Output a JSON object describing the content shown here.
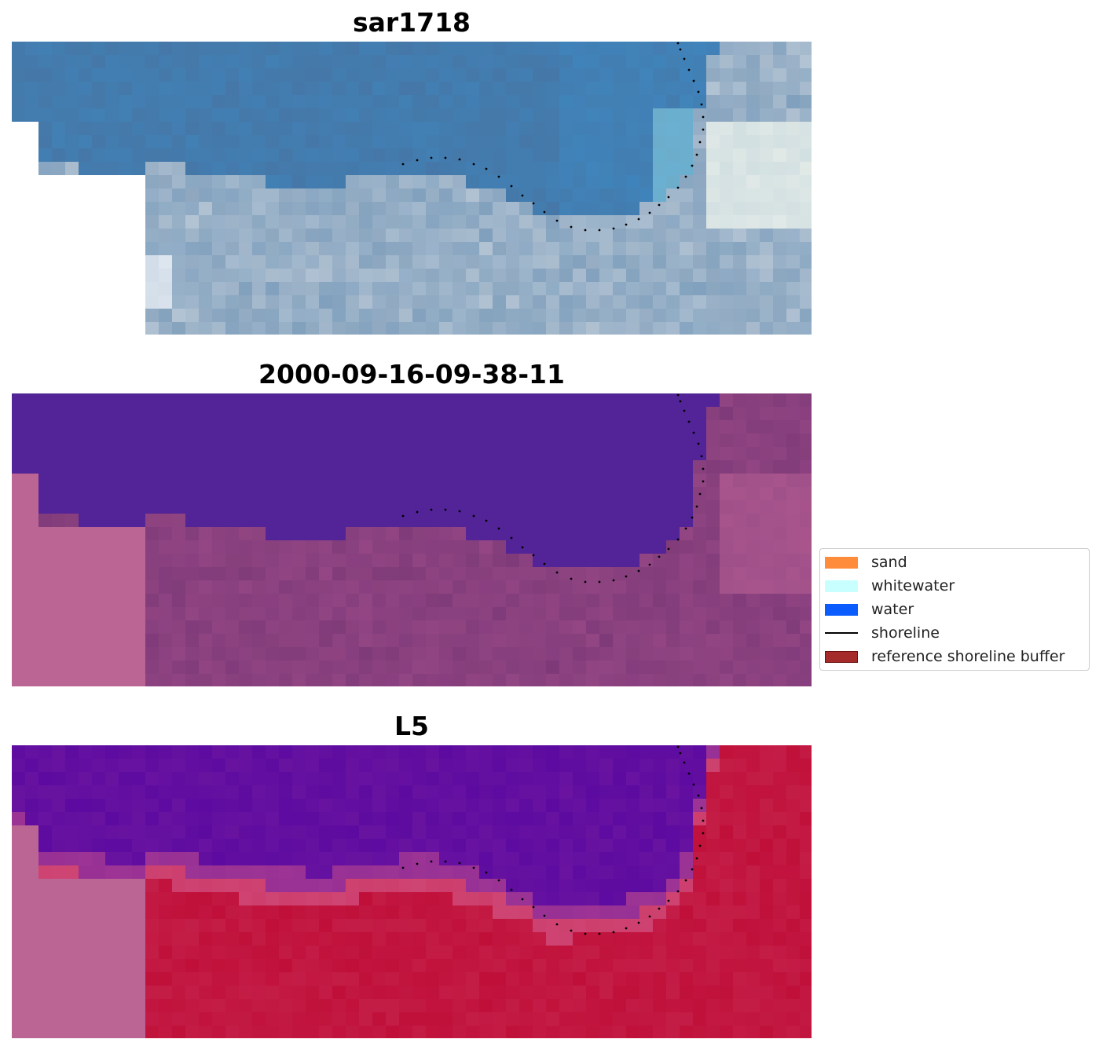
{
  "panels": [
    {
      "id": "rgb",
      "title": "sar1718"
    },
    {
      "id": "classified",
      "title": "2000-09-16-09-38-11"
    },
    {
      "id": "mndwi",
      "title": "L5"
    }
  ],
  "legend": {
    "items": [
      {
        "label": "sand",
        "color": "#ff8c3a",
        "kind": "patch"
      },
      {
        "label": "whitewater",
        "color": "#c8ffff",
        "kind": "patch"
      },
      {
        "label": "water",
        "color": "#0a5cff",
        "kind": "patch"
      },
      {
        "label": "shoreline",
        "color": "#000000",
        "kind": "line"
      },
      {
        "label": "reference shoreline buffer",
        "color": "#a52a2a",
        "kind": "patch"
      }
    ]
  },
  "colors": {
    "nodata": "#ffffff",
    "rgb_water": "#4578a8",
    "rgb_land": "#8fa8c0",
    "class_water": "#532398",
    "class_land": "#8a4080",
    "class_nodata_tint": "#bb6595",
    "mndwi_water": "#5c0aa0",
    "mndwi_land": "#c0103a",
    "mndwi_nodata_tint": "#bb6595",
    "shoreline_dots": "#000000"
  }
}
